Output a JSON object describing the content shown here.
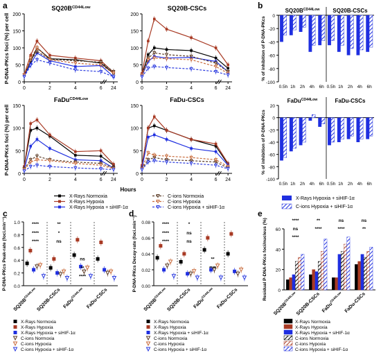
{
  "figure": {
    "panel_letters": [
      "a",
      "b",
      "c",
      "d",
      "e"
    ],
    "colors": {
      "xray_normoxia": "#000000",
      "xray_hypoxia": "#a83a24",
      "xray_hypoxia_sihif": "#1f2fe0",
      "cion_normoxia": "#5a3a24",
      "cion_hypoxia": "#c86a3a",
      "cion_hypoxia_sihif": "#2a3adf"
    }
  },
  "chart_data": [
    {
      "panel": "a",
      "type": "line",
      "ylabel": "P-DNA-PKcs foci (%) per cell",
      "xlabel": "Hours",
      "grid": false,
      "legend_entries": [
        "X-Rays Normoxia",
        "X-Rays Hypoxia",
        "X-Rays Hypoxia + siHIF-1α",
        "C-ions Normoxia",
        "C-ions Hypoxia",
        "C-ions Hypoxia + siHIF-1α"
      ],
      "subplots": [
        {
          "title": "SQ20B",
          "title_sup": "CD44Low",
          "x": [
            0,
            0.5,
            1,
            2,
            4,
            6,
            24
          ],
          "ylim": [
            0,
            200
          ],
          "yticks": [
            "0",
            "50",
            "100",
            "150",
            "200"
          ],
          "xticks": [
            "0",
            "2",
            "4",
            "6",
            "24"
          ],
          "series": [
            {
              "name": "X-Rays Normoxia",
              "values": [
                20,
                60,
                100,
                68,
                65,
                55,
                25
              ]
            },
            {
              "name": "X-Rays Hypoxia",
              "values": [
                22,
                78,
                120,
                78,
                70,
                62,
                28
              ]
            },
            {
              "name": "X-Rays Hypoxia + siHIF-1α",
              "values": [
                18,
                52,
                85,
                62,
                45,
                48,
                15
              ]
            },
            {
              "name": "C-ions Normoxia",
              "values": [
                20,
                62,
                90,
                66,
                62,
                58,
                30
              ]
            },
            {
              "name": "C-ions Hypoxia",
              "values": [
                20,
                70,
                100,
                65,
                55,
                50,
                25
              ]
            },
            {
              "name": "C-ions Hypoxia + siHIF-1α",
              "values": [
                15,
                48,
                65,
                55,
                35,
                30,
                15
              ]
            }
          ]
        },
        {
          "title": "SQ20B-CSCs",
          "title_sup": "",
          "x": [
            0,
            0.5,
            1,
            2,
            4,
            6,
            24
          ],
          "ylim": [
            0,
            200
          ],
          "yticks": [
            "0",
            "50",
            "100",
            "150",
            "200"
          ],
          "xticks": [
            "0",
            "2",
            "4",
            "6",
            "24"
          ],
          "series": [
            {
              "name": "X-Rays Normoxia",
              "values": [
                20,
                80,
                100,
                95,
                92,
                70,
                40
              ]
            },
            {
              "name": "X-Rays Hypoxia",
              "values": [
                25,
                120,
                185,
                155,
                130,
                100,
                50
              ]
            },
            {
              "name": "X-Rays Hypoxia + siHIF-1α",
              "values": [
                18,
                60,
                75,
                70,
                72,
                60,
                30
              ]
            },
            {
              "name": "C-ions Normoxia",
              "values": [
                18,
                70,
                85,
                80,
                75,
                55,
                30
              ]
            },
            {
              "name": "C-ions Hypoxia",
              "values": [
                20,
                65,
                70,
                68,
                65,
                45,
                25
              ]
            },
            {
              "name": "C-ions Hypoxia + siHIF-1α",
              "values": [
                15,
                40,
                45,
                42,
                38,
                30,
                20
              ]
            }
          ]
        },
        {
          "title": "FaDu",
          "title_sup": "CD44Low",
          "x": [
            0,
            0.5,
            1,
            2,
            4,
            6,
            24
          ],
          "ylim": [
            0,
            150
          ],
          "yticks": [
            "0",
            "50",
            "100",
            "150"
          ],
          "xticks": [
            "0",
            "2",
            "4",
            "6",
            "24"
          ],
          "series": [
            {
              "name": "X-Rays Normoxia",
              "values": [
                15,
                95,
                100,
                82,
                40,
                38,
                18
              ]
            },
            {
              "name": "X-Rays Hypoxia",
              "values": [
                15,
                110,
                118,
                85,
                48,
                50,
                20
              ]
            },
            {
              "name": "X-Rays Hypoxia + siHIF-1α",
              "values": [
                10,
                60,
                75,
                55,
                30,
                28,
                12
              ]
            },
            {
              "name": "C-ions Normoxia",
              "values": [
                10,
                30,
                38,
                30,
                25,
                22,
                12
              ]
            },
            {
              "name": "C-ions Hypoxia",
              "values": [
                8,
                25,
                30,
                28,
                22,
                18,
                10
              ]
            },
            {
              "name": "C-ions Hypoxia + siHIF-1α",
              "values": [
                5,
                15,
                18,
                15,
                12,
                10,
                8
              ]
            }
          ]
        },
        {
          "title": "FaDu-CSCs",
          "title_sup": "",
          "x": [
            0,
            0.5,
            1,
            2,
            4,
            6,
            24
          ],
          "ylim": [
            0,
            150
          ],
          "yticks": [
            "0",
            "50",
            "100",
            "150"
          ],
          "xticks": [
            "0",
            "2",
            "4",
            "6",
            "24"
          ],
          "series": [
            {
              "name": "X-Rays Normoxia",
              "values": [
                15,
                100,
                105,
                95,
                75,
                60,
                20
              ]
            },
            {
              "name": "X-Rays Hypoxia",
              "values": [
                18,
                100,
                125,
                95,
                75,
                65,
                22
              ]
            },
            {
              "name": "X-Rays Hypoxia + siHIF-1α",
              "values": [
                12,
                80,
                85,
                75,
                55,
                48,
                18
              ]
            },
            {
              "name": "C-ions Normoxia",
              "values": [
                10,
                30,
                35,
                30,
                28,
                25,
                12
              ]
            },
            {
              "name": "C-ions Hypoxia",
              "values": [
                10,
                45,
                40,
                38,
                35,
                30,
                15
              ]
            },
            {
              "name": "C-ions Hypoxia + siHIF-1α",
              "values": [
                8,
                25,
                28,
                25,
                22,
                18,
                10
              ]
            }
          ]
        }
      ]
    },
    {
      "panel": "b",
      "type": "bar",
      "ylabel": "% of inhibition of P-DNA-PKcs",
      "legend_entries": [
        "X-Rays Hypoxia + siHIF-1α",
        "C-ions Hypoxia + siHIF-1α"
      ],
      "subplots": [
        {
          "left_title": "SQ20B",
          "left_sup": "CD44Low",
          "right_title": "SQ20B-CSCs",
          "ylim": [
            -100,
            0
          ],
          "yticks": [
            "0",
            "-20",
            "-40",
            "-60",
            "-80",
            "-100"
          ],
          "categories": [
            "0.5h",
            "1h",
            "2h",
            "4h",
            "6h"
          ],
          "left": {
            "xray": [
              -40,
              -30,
              -25,
              -55,
              -45
            ],
            "cion": [
              -30,
              -22,
              -18,
              -45,
              -38
            ]
          },
          "right": {
            "xray": [
              -45,
              -55,
              -60,
              -60,
              -55
            ],
            "cion": [
              -38,
              -45,
              -50,
              -52,
              -48
            ]
          }
        },
        {
          "left_title": "FaDu",
          "left_sup": "CD44Low",
          "right_title": "FaDu-CSCs",
          "ylim": [
            -100,
            20
          ],
          "yticks": [
            "20",
            "0",
            "-20",
            "-40",
            "-60",
            "-80",
            "-100"
          ],
          "categories": [
            "0.5h",
            "1h",
            "2h",
            "4h",
            "6h"
          ],
          "left": {
            "xray": [
              -70,
              -55,
              -45,
              -5,
              -15
            ],
            "cion": [
              -65,
              -50,
              -40,
              5,
              -10
            ]
          },
          "right": {
            "xray": [
              -45,
              -40,
              -35,
              -40,
              -35
            ],
            "cion": [
              -40,
              -35,
              -30,
              -35,
              -30
            ]
          }
        }
      ]
    },
    {
      "panel": "c",
      "type": "scatter",
      "ylabel": "P-DNA-PKcs Peak-rate (foci.min⁻¹)",
      "ylim": [
        0,
        1.0
      ],
      "yticks": [
        "0.0",
        "0.2",
        "0.4",
        "0.6",
        "0.8",
        "1.0"
      ],
      "categories": [
        "SQ20B",
        "SQ20B-CSCs",
        "FaDu",
        "FaDu-CSCs"
      ],
      "category_sups": [
        "CD44Low",
        "",
        "CD44Low",
        ""
      ],
      "series": [
        {
          "name": "X-Rays Normoxia",
          "values": [
            0.35,
            0.28,
            0.48,
            0.42
          ]
        },
        {
          "name": "X-Rays Hypoxia",
          "values": [
            0.55,
            0.42,
            0.72,
            0.68
          ]
        },
        {
          "name": "X-Rays Hypoxia + siHIF-1α",
          "values": [
            0.25,
            0.2,
            0.3,
            0.25
          ]
        },
        {
          "name": "C-ions Normoxia",
          "values": [
            0.3,
            0.18,
            0.22,
            0.2
          ]
        },
        {
          "name": "C-ions Hypoxia",
          "values": [
            0.32,
            0.22,
            0.28,
            0.22
          ]
        },
        {
          "name": "C-ions Hypoxia + siHIF-1α",
          "values": [
            0.15,
            0.12,
            0.15,
            0.12
          ]
        }
      ],
      "significance": [
        "****",
        "****",
        "****",
        "**",
        "*",
        "ns",
        "ns",
        "**",
        "****"
      ]
    },
    {
      "panel": "d",
      "type": "scatter",
      "ylabel": "P-DNA-PKcs Decay-rate (foci.min⁻¹)",
      "ylim": [
        0,
        0.08
      ],
      "yticks": [
        "0.00",
        "0.02",
        "0.04",
        "0.06",
        "0.08"
      ],
      "categories": [
        "SQ20B",
        "SQ20B-CSCs",
        "FaDu",
        "FaDu-CSCs"
      ],
      "category_sups": [
        "CD44Low",
        "",
        "CD44Low",
        ""
      ],
      "series": [
        {
          "name": "X-Rays Normoxia",
          "values": [
            0.035,
            0.03,
            0.045,
            0.04
          ]
        },
        {
          "name": "X-Rays Hypoxia",
          "values": [
            0.05,
            0.04,
            0.06,
            0.065
          ]
        },
        {
          "name": "X-Rays Hypoxia + siHIF-1α",
          "values": [
            0.02,
            0.015,
            0.02,
            0.018
          ]
        },
        {
          "name": "C-ions Normoxia",
          "values": [
            0.025,
            0.015,
            0.02,
            0.015
          ]
        },
        {
          "name": "C-ions Hypoxia",
          "values": [
            0.03,
            0.018,
            0.025,
            0.02
          ]
        },
        {
          "name": "C-ions Hypoxia + siHIF-1α",
          "values": [
            0.012,
            0.01,
            0.01,
            0.01
          ]
        }
      ],
      "significance": [
        "****",
        "****",
        "****",
        "*",
        "ns",
        "ns",
        "**",
        "****"
      ]
    },
    {
      "panel": "e",
      "type": "bar",
      "ylabel": "Residual P-DNA-PKcs foci/nucleus (%)",
      "ylim": [
        0,
        60
      ],
      "yticks": [
        "0",
        "20",
        "40",
        "60"
      ],
      "categories": [
        "SQ20B",
        "SQ20B-CSCs",
        "FaDu",
        "FaDu-CSCs"
      ],
      "category_sups": [
        "CD44Low",
        "",
        "CD44Low",
        ""
      ],
      "series": [
        {
          "name": "X-Rays Normoxia",
          "values": [
            10,
            15,
            12,
            25
          ]
        },
        {
          "name": "X-Rays Hypoxia",
          "values": [
            12,
            20,
            12,
            28
          ]
        },
        {
          "name": "X-Rays Hypoxia + siHIF-1α",
          "values": [
            15,
            18,
            35,
            35
          ]
        },
        {
          "name": "C-ions Normoxia",
          "values": [
            28,
            28,
            38,
            32
          ]
        },
        {
          "name": "C-ions Hypoxia",
          "values": [
            32,
            38,
            45,
            38
          ]
        },
        {
          "name": "C-ions Hypoxia + siHIF-1α",
          "values": [
            35,
            50,
            52,
            42
          ]
        }
      ],
      "significance": [
        "****",
        "**",
        "ns",
        "ns",
        "ns",
        "****",
        "****",
        "**",
        "****"
      ]
    }
  ]
}
